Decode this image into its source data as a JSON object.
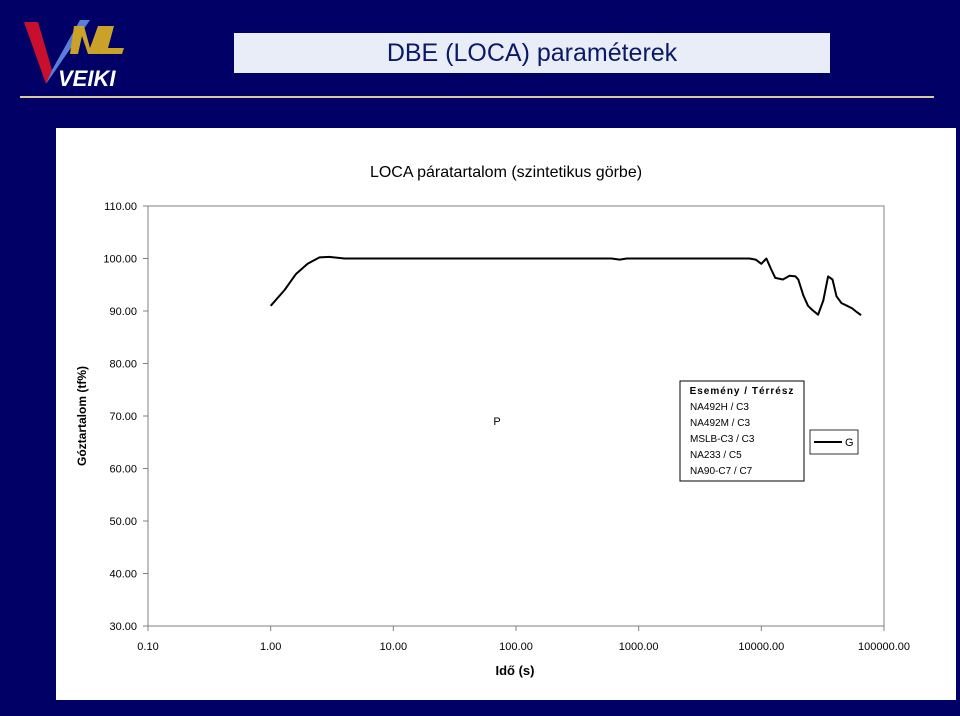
{
  "header": {
    "title": "DBE (LOCA) paraméterek",
    "logo_text": "VEIKI"
  },
  "colors": {
    "background": "#000066",
    "title_bar": "#e8edf7",
    "rule": "#d9c9a2"
  },
  "chart_data": {
    "type": "line",
    "title": "LOCA páratartalom (szintetikus görbe)",
    "xlabel": "Idő (s)",
    "ylabel": "Góztartalom (tf%)",
    "xscale": "log",
    "xlim": [
      0.1,
      100000
    ],
    "ylim": [
      30,
      110
    ],
    "x_ticks": [
      0.1,
      1,
      10,
      100,
      1000,
      10000,
      100000
    ],
    "x_tick_labels": [
      "0.10",
      "1.00",
      "10.00",
      "100.00",
      "1000.00",
      "10000.00",
      "100000.00"
    ],
    "y_ticks": [
      30,
      40,
      50,
      60,
      70,
      80,
      90,
      100,
      110
    ],
    "y_tick_labels": [
      "30.00",
      "40.00",
      "50.00",
      "60.00",
      "70.00",
      "80.00",
      "90.00",
      "100.00",
      "110.00"
    ],
    "grid": "none",
    "annotation_p": "P",
    "annotation_g": "G",
    "legend": {
      "placement": "center-right",
      "heading": "Esemény / Térrész",
      "entries": [
        "NA492H / C3",
        "NA492M / C3",
        "MSLB-C3 / C3",
        "NA233 / C5",
        "NA90-C7 / C7"
      ]
    },
    "series": [
      {
        "x": [
          1.0,
          1.3,
          1.6,
          2.0,
          2.5,
          3.0,
          4.0,
          5.0,
          600,
          700,
          800,
          1000,
          2000,
          3000,
          4000,
          5000,
          6000,
          7000,
          8000,
          9000,
          10000,
          11000,
          12000,
          13000,
          15000,
          17000,
          19000,
          20000,
          22000,
          24000,
          26000,
          29000,
          32000,
          35000,
          38000,
          41000,
          45000,
          50000,
          55000,
          60000,
          65000
        ],
        "y": [
          91,
          94,
          97,
          99,
          100.2,
          100.3,
          100,
          100,
          100,
          99.8,
          100,
          100,
          100,
          100,
          100,
          100,
          100,
          100,
          100,
          99.8,
          99,
          100,
          98,
          96.3,
          96,
          96.7,
          96.6,
          96,
          93,
          91,
          90.2,
          89.3,
          92,
          96.6,
          96,
          92.8,
          91.5,
          91,
          90.5,
          89.8,
          89.2
        ]
      }
    ]
  }
}
